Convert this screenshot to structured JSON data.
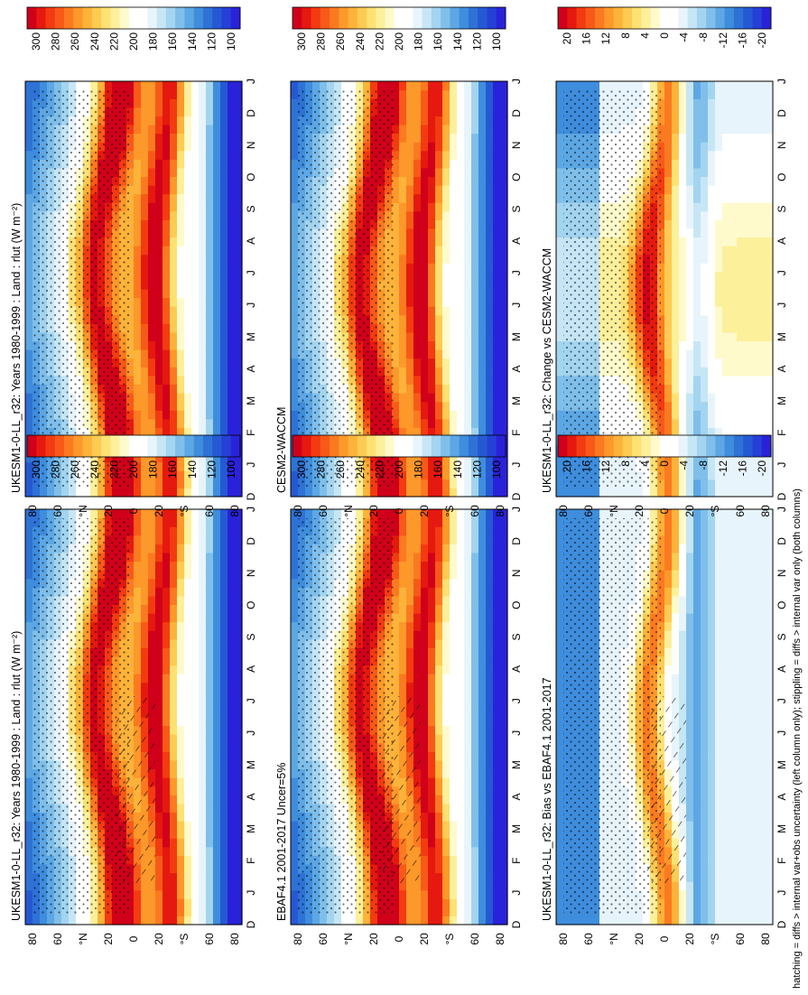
{
  "figure": {
    "footnote": "hatching = diffs > internal var+obs uncertainty (left column only); stippling = diffs > internal var only (both columns)"
  },
  "colors": {
    "abs_palette": [
      "#d0001a",
      "#e5190f",
      "#f33b11",
      "#f75a18",
      "#fb7a21",
      "#fd982a",
      "#fdb33a",
      "#fdcb52",
      "#fde172",
      "#fdf09b",
      "#fefacb",
      "#ffffff",
      "#ffffff",
      "#e8f4fb",
      "#c6e6f6",
      "#a3d4f0",
      "#7fbfea",
      "#5ca7e4",
      "#3f8ddd",
      "#2e72d6",
      "#2559d4",
      "#2640d6",
      "#2a22d8"
    ],
    "diff_palette": [
      "#d0001a",
      "#e5190f",
      "#f33b11",
      "#f75a18",
      "#fb7a21",
      "#fd982a",
      "#fdb33a",
      "#fdcb52",
      "#fde172",
      "#fdf09b",
      "#fefacb",
      "#ffffff",
      "#ffffff",
      "#e8f4fb",
      "#c6e6f6",
      "#a3d4f0",
      "#7fbfea",
      "#5ca7e4",
      "#3f8ddd",
      "#2e72d6",
      "#2559d4",
      "#2640d6",
      "#2a22d8"
    ]
  },
  "chart_data": [
    {
      "type": "heatmap",
      "title": "UKESM1-0-LL_r32: Years 1980-1999 : Land : rlut (W m⁻²)",
      "x": [
        "J",
        "F",
        "M",
        "A",
        "M",
        "J",
        "J",
        "A",
        "S",
        "O",
        "N",
        "D",
        "J"
      ],
      "x_edge_left": "D",
      "y_ticks": [
        "80",
        "60",
        "°N",
        "20",
        "0",
        "20",
        "°S",
        "60",
        "80"
      ],
      "colorbar_ticks": [
        "300",
        "280",
        "260",
        "240",
        "220",
        "200",
        "180",
        "160",
        "140",
        "120",
        "100"
      ],
      "units": "W m-2",
      "stipple": true,
      "hatch": true
    },
    {
      "type": "heatmap",
      "title": "UKESM1-0-LL_r32: Years 1980-1999 : Land : rlut (W m⁻²)",
      "x": [
        "J",
        "F",
        "M",
        "A",
        "M",
        "J",
        "J",
        "A",
        "S",
        "O",
        "N",
        "D",
        "J"
      ],
      "x_edge_left": "D",
      "y_ticks": [
        "80",
        "60",
        "°N",
        "20",
        "0",
        "20",
        "°S",
        "60",
        "80"
      ],
      "colorbar_ticks": [
        "300",
        "280",
        "260",
        "240",
        "220",
        "200",
        "180",
        "160",
        "140",
        "120",
        "100"
      ],
      "units": "W m-2",
      "stipple": true,
      "hatch": false
    },
    {
      "type": "heatmap",
      "title": "EBAF4.1 2001-2017 Uncer=5%",
      "x": [
        "J",
        "F",
        "M",
        "A",
        "M",
        "J",
        "J",
        "A",
        "S",
        "O",
        "N",
        "D",
        "J"
      ],
      "x_edge_left": "D",
      "y_ticks": [
        "80",
        "60",
        "°N",
        "20",
        "0",
        "20",
        "°S",
        "60",
        "80"
      ],
      "colorbar_ticks": [
        "300",
        "280",
        "260",
        "240",
        "220",
        "200",
        "180",
        "160",
        "140",
        "120",
        "100"
      ],
      "units": "W m-2",
      "stipple": true,
      "hatch": true
    },
    {
      "type": "heatmap",
      "title": "CESM2-WACCM",
      "x": [
        "J",
        "F",
        "M",
        "A",
        "M",
        "J",
        "J",
        "A",
        "S",
        "O",
        "N",
        "D",
        "J"
      ],
      "x_edge_left": "D",
      "y_ticks": [
        "80",
        "60",
        "°N",
        "20",
        "0",
        "20",
        "°S",
        "60",
        "80"
      ],
      "colorbar_ticks": [
        "300",
        "280",
        "260",
        "240",
        "220",
        "200",
        "180",
        "160",
        "140",
        "120",
        "100"
      ],
      "units": "W m-2",
      "stipple": true,
      "hatch": false
    },
    {
      "type": "heatmap",
      "title": "UKESM1-0-LL_r32: Bias vs EBAF4.1 2001-2017",
      "x": [
        "J",
        "F",
        "M",
        "A",
        "M",
        "J",
        "J",
        "A",
        "S",
        "O",
        "N",
        "D",
        "J"
      ],
      "x_edge_left": "D",
      "y_ticks": [
        "80",
        "60",
        "°N",
        "20",
        "0",
        "20",
        "°S",
        "60",
        "80"
      ],
      "colorbar_ticks": [
        "20",
        "16",
        "12",
        "8",
        "4",
        "0",
        "-4",
        "-8",
        "-12",
        "-16",
        "-20"
      ],
      "units": "W m-2",
      "stipple": true,
      "hatch": true
    },
    {
      "type": "heatmap",
      "title": "UKESM1-0-LL_r32: Change vs CESM2-WACCM",
      "x": [
        "J",
        "F",
        "M",
        "A",
        "M",
        "J",
        "J",
        "A",
        "S",
        "O",
        "N",
        "D",
        "J"
      ],
      "x_edge_left": "D",
      "y_ticks": [
        "80",
        "60",
        "°N",
        "20",
        "0",
        "20",
        "°S",
        "60",
        "80"
      ],
      "colorbar_ticks": [
        "20",
        "16",
        "12",
        "8",
        "4",
        "0",
        "-4",
        "-8",
        "-12",
        "-16",
        "-20"
      ],
      "units": "W m-2",
      "stipple": true,
      "hatch": false
    }
  ]
}
